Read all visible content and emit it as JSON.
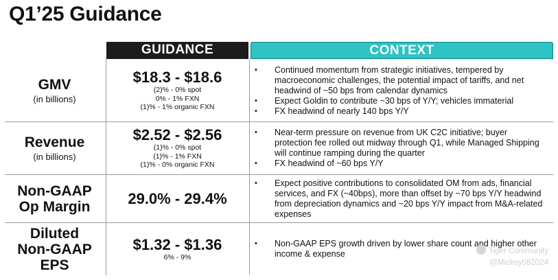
{
  "title": "Q1’25 Guidance",
  "headers": {
    "guidance": "GUIDANCE",
    "context": "CONTEXT"
  },
  "rows": [
    {
      "metric": "GMV",
      "sub": "(in billions)",
      "range": "$18.3 - $18.6",
      "notes": [
        "(2)% - 0% spot",
        "0% - 1% FXN",
        "(1)% - 1% organic FXN"
      ],
      "context": [
        "Continued momentum from strategic initiatives, tempered by macroeconomic challenges, the potential impact of tariffs, and net headwind of ~50 bps from calendar dynamics",
        "Expect Goldin to contribute ~30 bps of Y/Y; vehicles immaterial",
        "FX headwind of nearly 140 bps Y/Y"
      ]
    },
    {
      "metric": "Revenue",
      "sub": "(in billions)",
      "range": "$2.52 - $2.56",
      "notes": [
        "(1)% - 0% spot",
        "(1)% - 1% FXN",
        "(1)% - 0% organic FXN"
      ],
      "context": [
        "Near-term pressure on revenue from UK C2C initiative; buyer protection fee rolled out midway through Q1, while Managed Shipping will continue ramping during the quarter",
        "FX headwind of ~60 bps Y/Y"
      ]
    },
    {
      "metric_lines": [
        "Non-GAAP",
        "Op Margin"
      ],
      "range": "29.0% - 29.4%",
      "context": [
        "Expect positive contributions to consolidated OM from ads, financial services, and FX (~40bps), more than offset by ~70 bps Y/Y headwind from depreciation dynamics and ~20 bps Y/Y impact from M&A-related expenses"
      ]
    },
    {
      "metric_lines": [
        "Diluted",
        "Non-GAAP",
        "EPS"
      ],
      "range": "$1.32 - $1.36",
      "notes": [
        "6% - 9%"
      ],
      "context": [
        "Non-GAAP EPS growth driven by lower share count and higher other income & expense"
      ]
    }
  ],
  "watermark": {
    "brand": "Tiger Community",
    "handle": "@Mickey082024"
  }
}
